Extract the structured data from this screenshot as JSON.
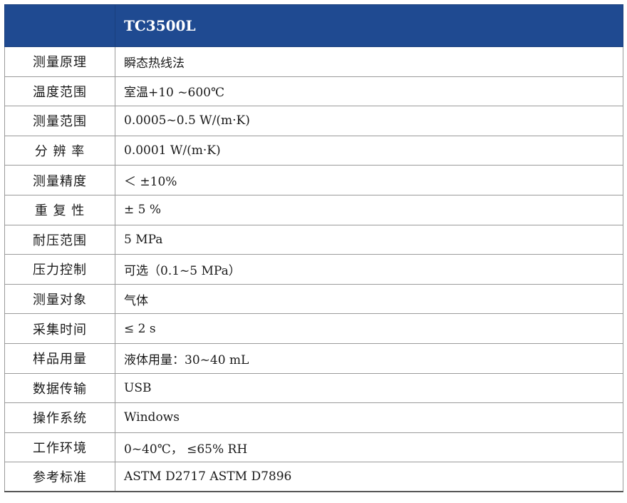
{
  "header": {
    "corner": "",
    "model": "TC3500L"
  },
  "colors": {
    "header_background": "#1f4a91",
    "header_text": "#ffffff",
    "border": "#9a9a9a"
  },
  "rows": [
    {
      "label": "测量原理",
      "value": "瞬态热线法"
    },
    {
      "label": "温度范围",
      "value": "室温+10 ~600℃"
    },
    {
      "label": "测量范围",
      "value": "0.0005~0.5 W/(m·K)"
    },
    {
      "label": "分 辨 率",
      "value": "0.0001 W/(m·K)"
    },
    {
      "label": "测量精度",
      "value": "＜ ±10%"
    },
    {
      "label": "重 复 性",
      "value": "± 5 %"
    },
    {
      "label": "耐压范围",
      "value": "5 MPa"
    },
    {
      "label": "压力控制",
      "value": "可选（0.1~5 MPa）"
    },
    {
      "label": "测量对象",
      "value": "气体"
    },
    {
      "label": "采集时间",
      "value": "≤ 2 s"
    },
    {
      "label": "样品用量",
      "value": "液体用量：30~40 mL"
    },
    {
      "label": "数据传输",
      "value": "USB"
    },
    {
      "label": "操作系统",
      "value": "Windows"
    },
    {
      "label": "工作环境",
      "value": "0~40℃， ≤65% RH"
    },
    {
      "label": "参考标准",
      "value": "ASTM D2717    ASTM D7896"
    }
  ]
}
